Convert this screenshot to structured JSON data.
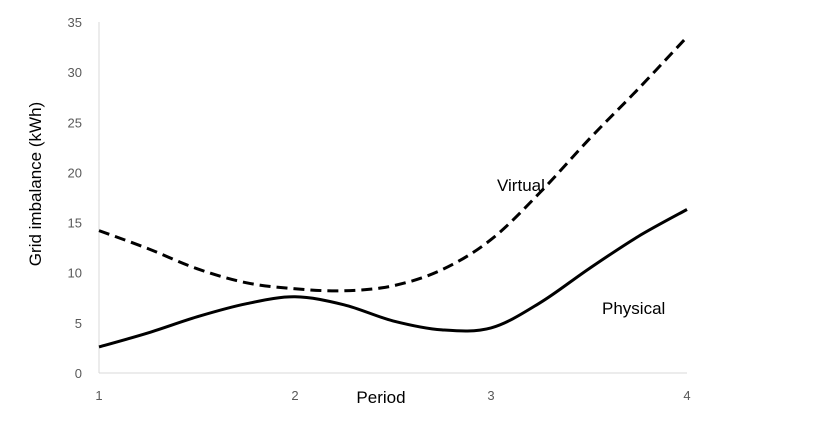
{
  "chart_data": {
    "type": "line",
    "title": "",
    "xlabel": "Period",
    "ylabel": "Grid imbalance (kWh)",
    "x": [
      1,
      2,
      3,
      4
    ],
    "xlim": [
      1,
      4
    ],
    "ylim": [
      0,
      35
    ],
    "yticks": [
      0,
      5,
      10,
      15,
      20,
      25,
      30,
      35
    ],
    "xticks": [
      1,
      2,
      3,
      4
    ],
    "grid": false,
    "legend": "none",
    "series": [
      {
        "name": "Virtual",
        "line_style": "dashed",
        "color": "#000000",
        "x": [
          1,
          1.25,
          1.5,
          1.75,
          2,
          2.25,
          2.5,
          2.75,
          3,
          3.25,
          3.5,
          3.75,
          4
        ],
        "values": [
          14.2,
          12.4,
          10.4,
          9.0,
          8.4,
          8.2,
          8.7,
          10.3,
          13.3,
          18.0,
          23.3,
          28.3,
          33.5
        ]
      },
      {
        "name": "Physical",
        "line_style": "solid",
        "color": "#000000",
        "x": [
          1,
          1.25,
          1.5,
          1.75,
          2,
          2.25,
          2.5,
          2.75,
          3,
          3.25,
          3.5,
          3.75,
          4
        ],
        "values": [
          2.6,
          4.0,
          5.6,
          6.9,
          7.6,
          6.8,
          5.2,
          4.3,
          4.5,
          7.0,
          10.4,
          13.6,
          16.3
        ]
      }
    ]
  }
}
